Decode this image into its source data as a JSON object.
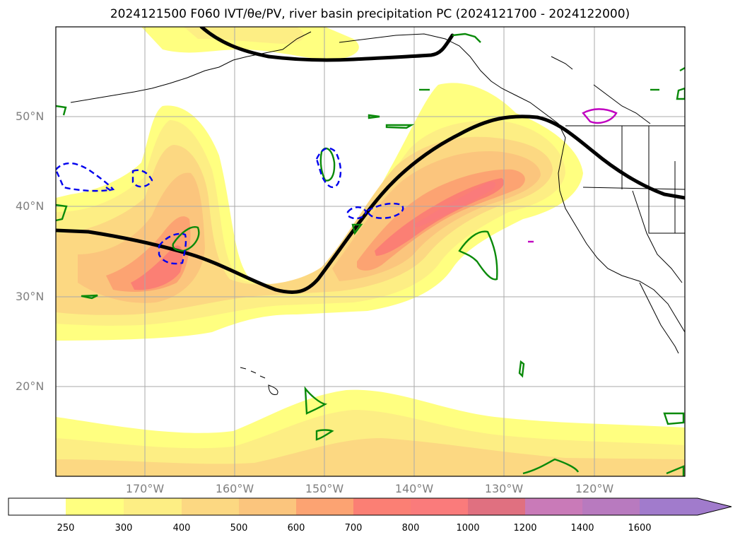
{
  "title": "2024121500 F060 IVT/θe/PV, river basin precipitation PC (2024121700 - 2024122000)",
  "latitude_labels": [
    "50°N",
    "40°N",
    "30°N",
    "20°N"
  ],
  "longitude_labels": [
    "170°W",
    "160°W",
    "150°W",
    "140°W",
    "130°W",
    "120°W"
  ],
  "colorbar": {
    "ticks": [
      "250",
      "300",
      "400",
      "500",
      "600",
      "700",
      "800",
      "1000",
      "1200",
      "1400",
      "1600"
    ],
    "colors": [
      "#ffffff",
      "#ffff80",
      "#fdee84",
      "#fcd882",
      "#fbc57d",
      "#fca372",
      "#fb7f74",
      "#fa7b7b",
      "#e07080",
      "#c97ab8",
      "#b87abf",
      "#a17bcc"
    ]
  },
  "colors": {
    "contour_line": "#000000",
    "pv_positive": "#0a8a0a",
    "pv_negative": "#0000ee",
    "magenta": "#c000c0",
    "grid": "#aaaaaa"
  }
}
